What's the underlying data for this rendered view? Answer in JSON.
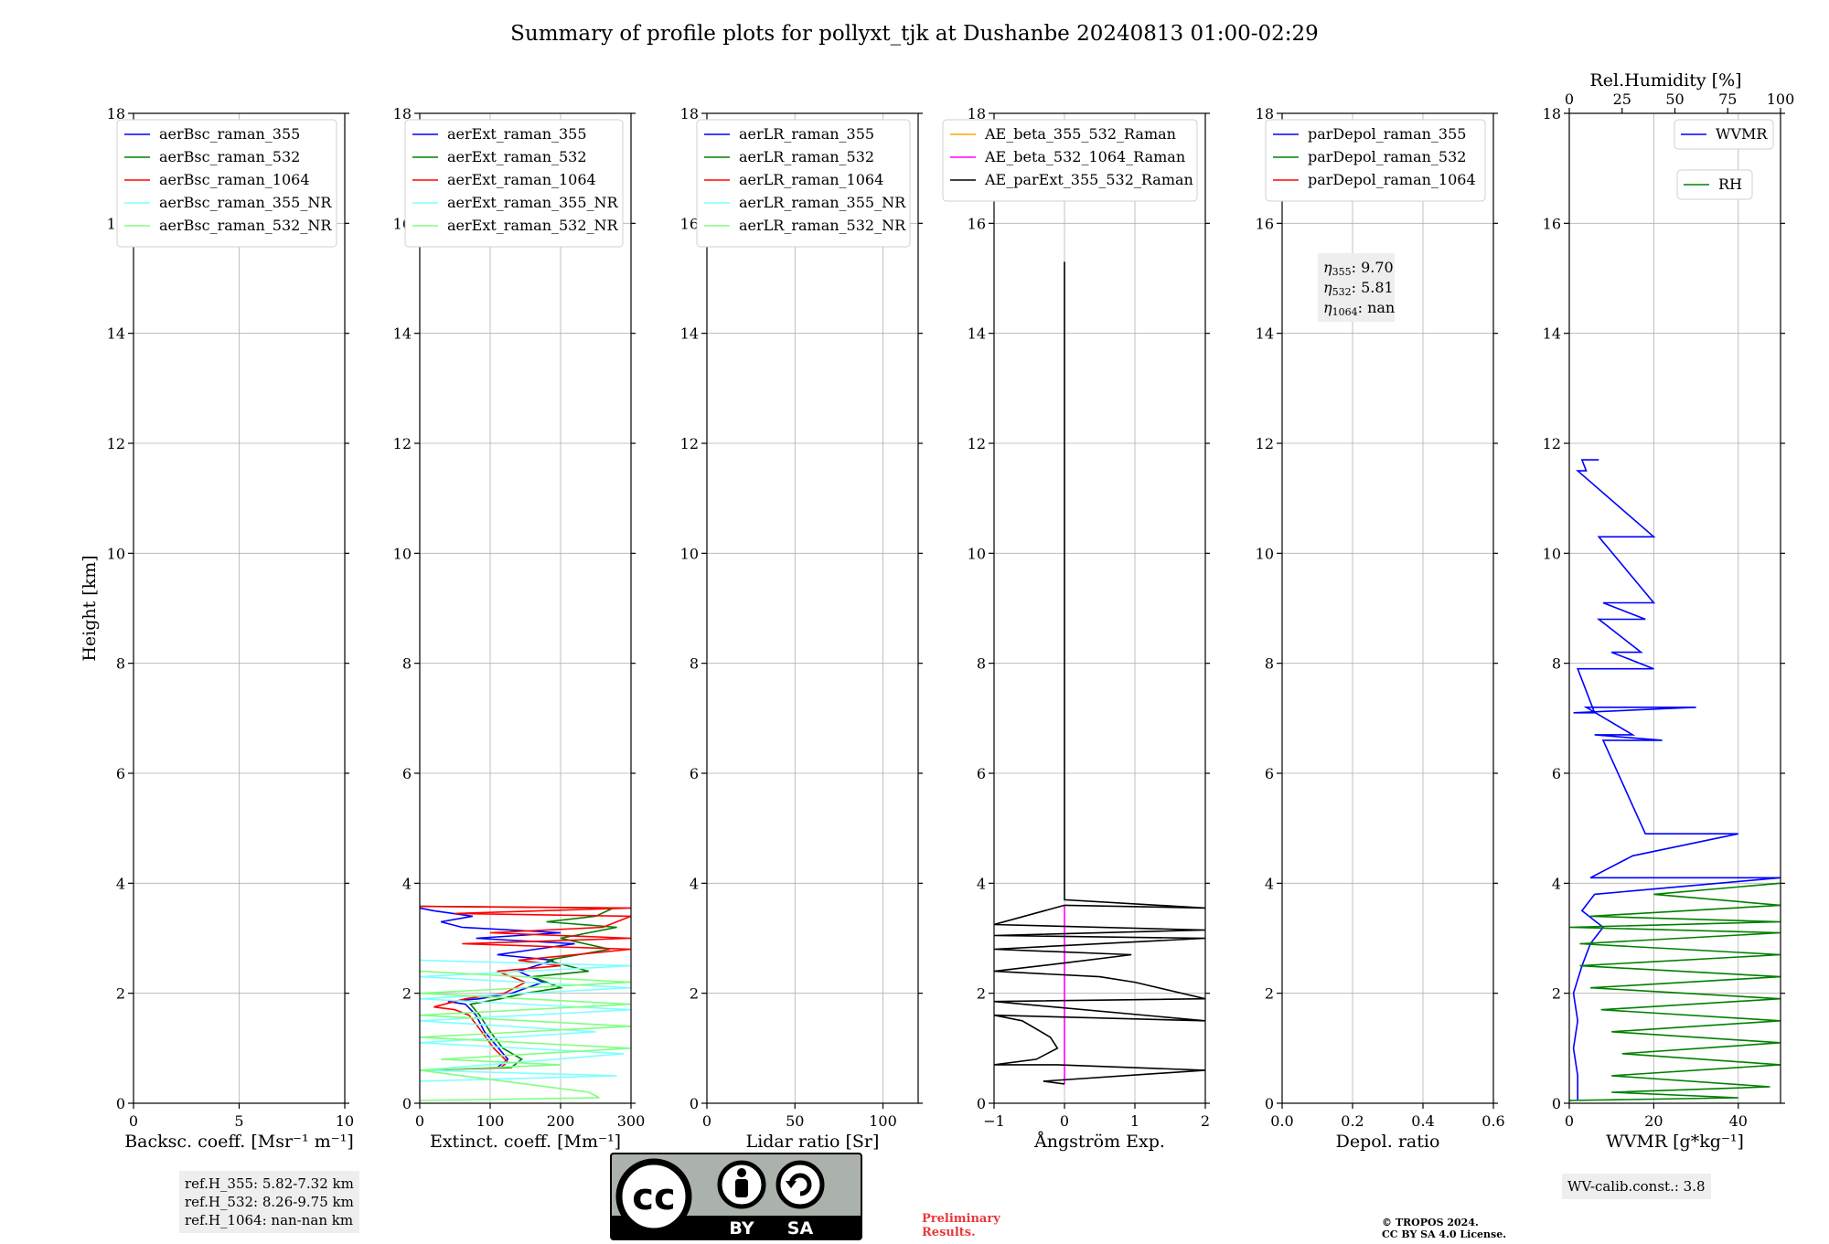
{
  "figure_title": "Summary of profile plots for pollyxt_tjk at Dushanbe 20240813 01:00-02:29",
  "ref_heights": [
    "ref.H_355: 5.82-7.32 km",
    "ref.H_532: 8.26-9.75 km",
    "ref.H_1064: nan-nan km"
  ],
  "wv_calib": "WV-calib.const.: 3.8",
  "preliminary": [
    "Preliminary",
    "Results."
  ],
  "copyright": [
    "© TROPOS 2024.",
    "CC BY SA 4.0 License."
  ],
  "license_badge": {
    "cc": "cc",
    "by": "BY",
    "sa": "SA"
  },
  "colors": {
    "blue": "#0000ff",
    "green": "#008000",
    "red": "#ff0000",
    "cyan": "#80ffff",
    "lightgreen": "#80ff80",
    "orange": "#ffa500",
    "magenta": "#ff00ff",
    "black": "#000000"
  },
  "chart_data": [
    {
      "type": "line",
      "xlabel": "Backsc. coeff. [Msr⁻¹ m⁻¹]",
      "ylabel": "Height [km]",
      "xlim": [
        0,
        10
      ],
      "ylim": [
        0,
        18
      ],
      "xticks": [
        0,
        5,
        10
      ],
      "yticks": [
        0,
        2,
        4,
        6,
        8,
        10,
        12,
        14,
        16,
        18
      ],
      "grid": true,
      "legend_position": "top-right",
      "series": [
        {
          "name": "aerBsc_raman_355",
          "color": "blue",
          "points": []
        },
        {
          "name": "aerBsc_raman_532",
          "color": "green",
          "points": []
        },
        {
          "name": "aerBsc_raman_1064",
          "color": "red",
          "points": []
        },
        {
          "name": "aerBsc_raman_355_NR",
          "color": "cyan",
          "points": []
        },
        {
          "name": "aerBsc_raman_532_NR",
          "color": "lightgreen",
          "points": []
        }
      ]
    },
    {
      "type": "line",
      "xlabel": "Extinct. coeff. [Mm⁻¹]",
      "ylabel": "",
      "xlim": [
        0,
        300
      ],
      "ylim": [
        0,
        18
      ],
      "xticks": [
        0,
        100,
        200,
        300
      ],
      "yticks": [
        0,
        2,
        4,
        6,
        8,
        10,
        12,
        14,
        16,
        18
      ],
      "grid": true,
      "legend_position": "top-right",
      "series": [
        {
          "name": "aerExt_raman_355",
          "color": "blue",
          "points": [
            [
              0,
              0.6
            ],
            [
              110,
              0.65
            ],
            [
              125,
              0.8
            ],
            [
              112,
              1.0
            ],
            [
              92,
              1.3
            ],
            [
              80,
              1.6
            ],
            [
              65,
              1.8
            ],
            [
              40,
              1.85
            ],
            [
              85,
              1.9
            ],
            [
              130,
              2.0
            ],
            [
              175,
              2.2
            ],
            [
              140,
              2.4
            ],
            [
              190,
              2.6
            ],
            [
              110,
              2.7
            ],
            [
              220,
              2.9
            ],
            [
              80,
              3.0
            ],
            [
              200,
              3.1
            ],
            [
              60,
              3.2
            ],
            [
              30,
              3.3
            ],
            [
              75,
              3.4
            ],
            [
              20,
              3.5
            ],
            [
              0,
              3.55
            ]
          ]
        },
        {
          "name": "aerExt_raman_532",
          "color": "green",
          "points": [
            [
              0,
              0.6
            ],
            [
              130,
              0.65
            ],
            [
              145,
              0.8
            ],
            [
              118,
              1.0
            ],
            [
              100,
              1.3
            ],
            [
              85,
              1.6
            ],
            [
              72,
              1.8
            ],
            [
              115,
              1.9
            ],
            [
              150,
              2.0
            ],
            [
              200,
              2.1
            ],
            [
              160,
              2.3
            ],
            [
              240,
              2.4
            ],
            [
              180,
              2.6
            ],
            [
              270,
              2.8
            ],
            [
              200,
              3.0
            ],
            [
              280,
              3.2
            ],
            [
              180,
              3.3
            ],
            [
              250,
              3.4
            ],
            [
              275,
              3.55
            ],
            [
              0,
              3.58
            ]
          ]
        },
        {
          "name": "aerExt_raman_1064",
          "color": "red",
          "points": [
            [
              0,
              0.6
            ],
            [
              115,
              0.65
            ],
            [
              125,
              0.75
            ],
            [
              105,
              1.0
            ],
            [
              88,
              1.3
            ],
            [
              70,
              1.6
            ],
            [
              50,
              1.7
            ],
            [
              20,
              1.75
            ],
            [
              65,
              1.9
            ],
            [
              120,
              2.0
            ],
            [
              150,
              2.2
            ],
            [
              110,
              2.4
            ],
            [
              200,
              2.5
            ],
            [
              140,
              2.6
            ],
            [
              300,
              2.8
            ],
            [
              60,
              2.9
            ],
            [
              300,
              3.0
            ],
            [
              100,
              3.1
            ],
            [
              260,
              3.2
            ],
            [
              300,
              3.4
            ],
            [
              50,
              3.45
            ],
            [
              300,
              3.55
            ],
            [
              0,
              3.58
            ]
          ]
        },
        {
          "name": "aerExt_raman_355_NR",
          "color": "cyan",
          "points": [
            [
              0,
              0.4
            ],
            [
              280,
              0.5
            ],
            [
              0,
              0.6
            ],
            [
              290,
              0.9
            ],
            [
              0,
              1.1
            ],
            [
              250,
              1.3
            ],
            [
              0,
              1.5
            ],
            [
              300,
              1.7
            ],
            [
              0,
              1.9
            ],
            [
              300,
              2.1
            ],
            [
              0,
              2.3
            ],
            [
              300,
              2.5
            ],
            [
              0,
              2.6
            ]
          ]
        },
        {
          "name": "aerExt_raman_532_NR",
          "color": "lightgreen",
          "points": [
            [
              0,
              0.05
            ],
            [
              255,
              0.1
            ],
            [
              240,
              0.2
            ],
            [
              150,
              0.35
            ],
            [
              60,
              0.5
            ],
            [
              0,
              0.6
            ],
            [
              200,
              0.7
            ],
            [
              30,
              0.8
            ],
            [
              300,
              1.0
            ],
            [
              0,
              1.2
            ],
            [
              300,
              1.4
            ],
            [
              0,
              1.6
            ],
            [
              300,
              1.8
            ],
            [
              0,
              2.0
            ],
            [
              300,
              2.2
            ],
            [
              0,
              2.4
            ]
          ]
        }
      ]
    },
    {
      "type": "line",
      "xlabel": "Lidar ratio [Sr]",
      "ylabel": "",
      "xlim": [
        0,
        120
      ],
      "ylim": [
        0,
        18
      ],
      "xticks": [
        0,
        50,
        100
      ],
      "yticks": [
        0,
        2,
        4,
        6,
        8,
        10,
        12,
        14,
        16,
        18
      ],
      "grid": true,
      "legend_position": "top-right",
      "series": [
        {
          "name": "aerLR_raman_355",
          "color": "blue",
          "points": []
        },
        {
          "name": "aerLR_raman_532",
          "color": "green",
          "points": []
        },
        {
          "name": "aerLR_raman_1064",
          "color": "red",
          "points": []
        },
        {
          "name": "aerLR_raman_355_NR",
          "color": "cyan",
          "points": []
        },
        {
          "name": "aerLR_raman_532_NR",
          "color": "lightgreen",
          "points": []
        }
      ]
    },
    {
      "type": "line",
      "xlabel": "Ångström Exp.",
      "ylabel": "",
      "xlim": [
        -1,
        2
      ],
      "ylim": [
        0,
        18
      ],
      "xticks": [
        -1,
        0,
        1,
        2
      ],
      "yticks": [
        0,
        2,
        4,
        6,
        8,
        10,
        12,
        14,
        16,
        18
      ],
      "grid": true,
      "legend_position": "top-right",
      "series": [
        {
          "name": "AE_beta_355_532_Raman",
          "color": "orange",
          "points": []
        },
        {
          "name": "AE_beta_532_1064_Raman",
          "color": "magenta",
          "points": [
            [
              0,
              0.35
            ],
            [
              0,
              3.6
            ]
          ]
        },
        {
          "name": "AE_parExt_355_532_Raman",
          "color": "black",
          "points": [
            [
              0,
              0.35
            ],
            [
              -0.3,
              0.4
            ],
            [
              2,
              0.6
            ],
            [
              -0.1,
              0.7
            ],
            [
              -1,
              0.7
            ],
            [
              -0.4,
              0.8
            ],
            [
              -0.1,
              1.0
            ],
            [
              -0.2,
              1.2
            ],
            [
              -0.6,
              1.5
            ],
            [
              -1,
              1.6
            ],
            [
              2,
              1.5
            ],
            [
              -1,
              1.85
            ],
            [
              2,
              1.9
            ],
            [
              1,
              2.2
            ],
            [
              0.5,
              2.3
            ],
            [
              -1,
              2.4
            ],
            [
              0,
              2.55
            ],
            [
              0.95,
              2.7
            ],
            [
              -1,
              2.8
            ],
            [
              2,
              3.0
            ],
            [
              -1,
              3.05
            ],
            [
              2,
              3.15
            ],
            [
              -1,
              3.25
            ],
            [
              0,
              3.6
            ],
            [
              2,
              3.55
            ],
            [
              0,
              3.7
            ],
            [
              0,
              15.3
            ]
          ]
        }
      ]
    },
    {
      "type": "line",
      "xlabel": "Depol. ratio",
      "ylabel": "",
      "xlim": [
        0,
        0.6
      ],
      "ylim": [
        0,
        18
      ],
      "xticks": [
        0.0,
        0.2,
        0.4,
        0.6
      ],
      "yticks": [
        0,
        2,
        4,
        6,
        8,
        10,
        12,
        14,
        16,
        18
      ],
      "grid": true,
      "legend_position": "top-right",
      "annotation": {
        "eta_355": "9.70",
        "eta_532": "5.81",
        "eta_1064": "nan"
      },
      "series": [
        {
          "name": "parDepol_raman_355",
          "color": "blue",
          "points": []
        },
        {
          "name": "parDepol_raman_532",
          "color": "green",
          "points": []
        },
        {
          "name": "parDepol_raman_1064",
          "color": "red",
          "points": []
        }
      ]
    },
    {
      "type": "line",
      "xlabel": "WVMR [g*kg⁻¹]",
      "top_xlabel": "Rel.Humidity [%]",
      "ylabel": "",
      "xlim": [
        0,
        50
      ],
      "top_xlim": [
        0,
        100
      ],
      "ylim": [
        0,
        18
      ],
      "xticks": [
        0,
        20,
        40
      ],
      "top_xticks": [
        0,
        25,
        50,
        75,
        100
      ],
      "yticks": [
        0,
        2,
        4,
        6,
        8,
        10,
        12,
        14,
        16,
        18
      ],
      "grid": true,
      "series": [
        {
          "name": "WVMR",
          "color": "blue",
          "axis": "bottom",
          "points": [
            [
              2,
              0.05
            ],
            [
              2,
              0.5
            ],
            [
              1,
              1.0
            ],
            [
              2,
              1.5
            ],
            [
              1,
              2.0
            ],
            [
              3,
              2.5
            ],
            [
              5,
              2.9
            ],
            [
              8,
              3.2
            ],
            [
              3,
              3.5
            ],
            [
              6,
              3.8
            ],
            [
              50,
              4.1
            ],
            [
              5,
              4.1
            ],
            [
              15,
              4.5
            ],
            [
              40,
              4.9
            ],
            [
              18,
              4.9
            ],
            [
              8,
              6.6
            ],
            [
              22,
              6.6
            ],
            [
              6,
              6.7
            ],
            [
              15,
              6.7
            ],
            [
              4,
              7.2
            ],
            [
              30,
              7.2
            ],
            [
              1,
              7.1
            ],
            [
              6,
              7.1
            ],
            [
              2,
              7.9
            ],
            [
              20,
              7.9
            ],
            [
              10,
              8.2
            ],
            [
              17,
              8.2
            ],
            [
              7,
              8.8
            ],
            [
              18,
              8.8
            ],
            [
              8,
              9.1
            ],
            [
              20,
              9.1
            ],
            [
              7,
              10.3
            ],
            [
              20,
              10.3
            ],
            [
              2,
              11.5
            ],
            [
              4,
              11.5
            ],
            [
              3,
              11.7
            ],
            [
              7,
              11.7
            ]
          ]
        },
        {
          "name": "RH",
          "color": "green",
          "axis": "top",
          "points": [
            [
              0,
              0.05
            ],
            [
              80,
              0.1
            ],
            [
              20,
              0.2
            ],
            [
              95,
              0.3
            ],
            [
              20,
              0.5
            ],
            [
              100,
              0.7
            ],
            [
              25,
              0.9
            ],
            [
              100,
              1.1
            ],
            [
              20,
              1.3
            ],
            [
              100,
              1.5
            ],
            [
              15,
              1.7
            ],
            [
              100,
              1.9
            ],
            [
              10,
              2.1
            ],
            [
              100,
              2.3
            ],
            [
              5,
              2.5
            ],
            [
              100,
              2.7
            ],
            [
              5,
              2.9
            ],
            [
              100,
              3.1
            ],
            [
              0,
              3.2
            ],
            [
              100,
              3.3
            ],
            [
              10,
              3.4
            ],
            [
              100,
              3.6
            ],
            [
              40,
              3.8
            ],
            [
              100,
              4.0
            ]
          ]
        }
      ]
    }
  ]
}
